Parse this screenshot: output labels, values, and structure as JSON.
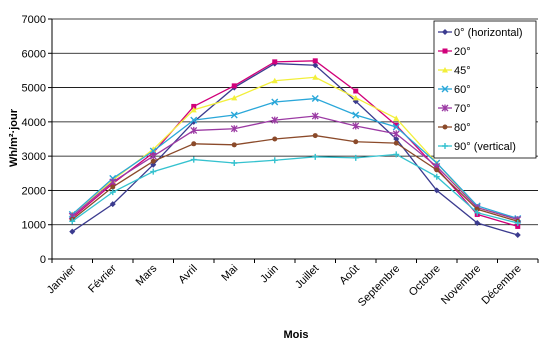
{
  "chart_data": {
    "type": "line",
    "xlabel": "Mois",
    "ylabel": "Wh/m²·jour",
    "ylim": [
      0,
      7000
    ],
    "yticks": [
      0,
      1000,
      2000,
      3000,
      4000,
      5000,
      6000,
      7000
    ],
    "grid": "horizontal",
    "legend_position": "top-right",
    "categories": [
      "Janvier",
      "Février",
      "Mars",
      "Avril",
      "Mai",
      "Juin",
      "Juillet",
      "Août",
      "Septembre",
      "Octobre",
      "Novembre",
      "Décembre"
    ],
    "series": [
      {
        "name": "0° (horizontal)",
        "color": "#3b3b8f",
        "marker": "diamond",
        "values": [
          800,
          1600,
          2750,
          4000,
          5000,
          5700,
          5650,
          4600,
          3500,
          2000,
          1050,
          700
        ]
      },
      {
        "name": "20°",
        "color": "#d1007a",
        "marker": "square",
        "values": [
          1200,
          2200,
          3100,
          4450,
          5050,
          5750,
          5780,
          4900,
          3900,
          2650,
          1300,
          950
        ]
      },
      {
        "name": "45°",
        "color": "#f2ef3a",
        "marker": "triangle",
        "values": [
          1300,
          2300,
          3200,
          4350,
          4700,
          5200,
          5300,
          4700,
          4100,
          2800,
          1500,
          1150
        ]
      },
      {
        "name": "60°",
        "color": "#2aa7d9",
        "marker": "x",
        "values": [
          1300,
          2350,
          3150,
          4050,
          4200,
          4580,
          4680,
          4200,
          3850,
          2800,
          1550,
          1180
        ]
      },
      {
        "name": "70°",
        "color": "#9b3aa3",
        "marker": "star",
        "values": [
          1250,
          2250,
          3000,
          3750,
          3800,
          4050,
          4170,
          3880,
          3650,
          2700,
          1500,
          1150
        ]
      },
      {
        "name": "80°",
        "color": "#8b4a2a",
        "marker": "circle",
        "values": [
          1150,
          2100,
          2850,
          3360,
          3330,
          3500,
          3600,
          3420,
          3380,
          2600,
          1450,
          1100
        ]
      },
      {
        "name": "90° (vertical)",
        "color": "#35c2cf",
        "marker": "plus",
        "values": [
          1100,
          1950,
          2550,
          2900,
          2800,
          2880,
          2980,
          2950,
          3050,
          2400,
          1350,
          1050
        ]
      }
    ]
  }
}
